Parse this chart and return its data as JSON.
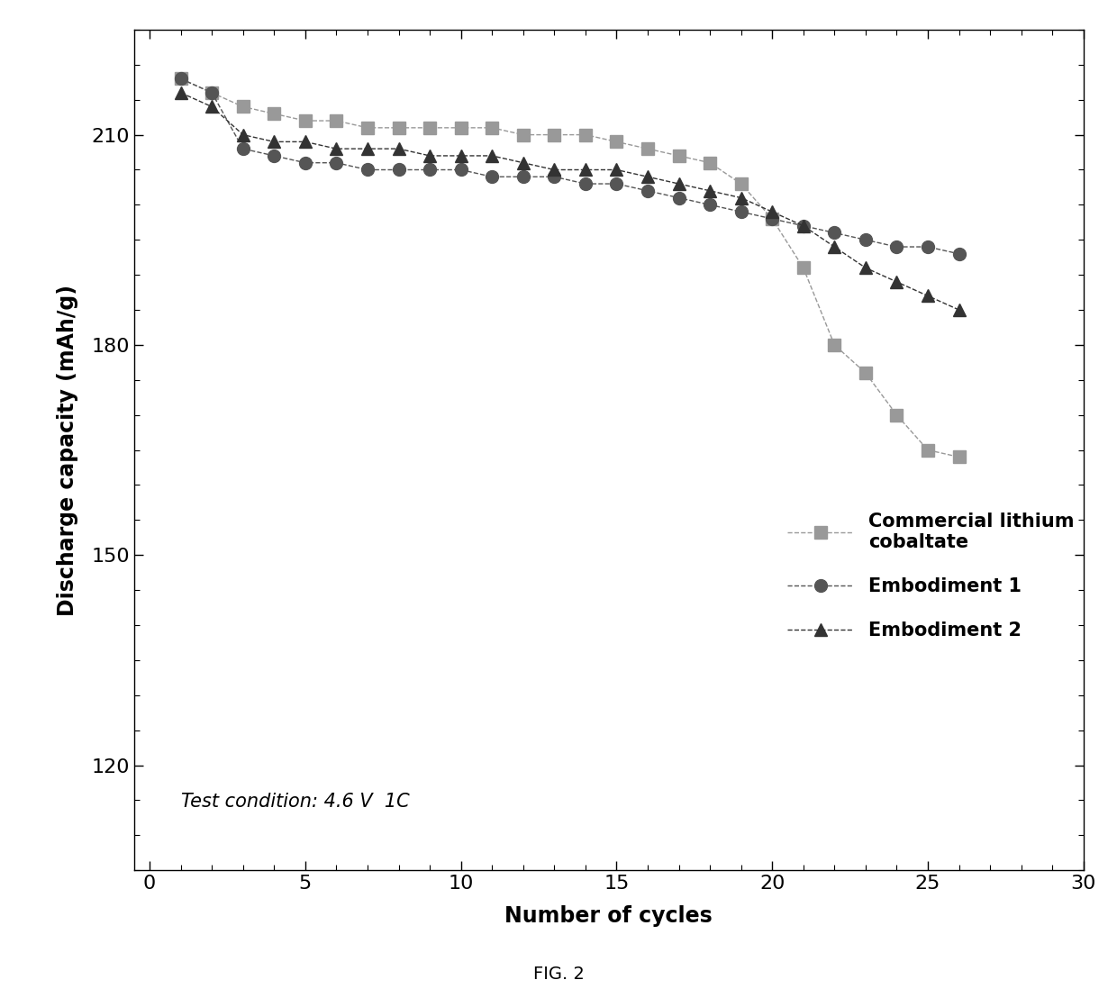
{
  "title": "",
  "xlabel": "Number of cycles",
  "ylabel": "Discharge capacity (mAh/g)",
  "xlim": [
    -0.5,
    30
  ],
  "ylim": [
    105,
    225
  ],
  "yticks": [
    120,
    150,
    180,
    210
  ],
  "xticks": [
    0,
    5,
    10,
    15,
    20,
    25,
    30
  ],
  "annotation": "Test condition: 4.6 V  1C",
  "fig_label": "FIG. 2",
  "series": [
    {
      "label": "Commercial lithium\ncobaltate",
      "x": [
        1,
        2,
        3,
        4,
        5,
        6,
        7,
        8,
        9,
        10,
        11,
        12,
        13,
        14,
        15,
        16,
        17,
        18,
        19,
        20,
        21,
        22,
        23,
        24,
        25,
        26
      ],
      "y": [
        218,
        216,
        214,
        213,
        212,
        212,
        211,
        211,
        211,
        211,
        211,
        210,
        210,
        210,
        209,
        208,
        207,
        206,
        203,
        198,
        191,
        180,
        176,
        170,
        165,
        164
      ],
      "color": "#999999",
      "marker": "s",
      "linestyle": "--",
      "markersize": 10
    },
    {
      "label": "Embodiment 1",
      "x": [
        1,
        2,
        3,
        4,
        5,
        6,
        7,
        8,
        9,
        10,
        11,
        12,
        13,
        14,
        15,
        16,
        17,
        18,
        19,
        20,
        21,
        22,
        23,
        24,
        25,
        26
      ],
      "y": [
        218,
        216,
        208,
        207,
        206,
        206,
        205,
        205,
        205,
        205,
        204,
        204,
        204,
        203,
        203,
        202,
        201,
        200,
        199,
        198,
        197,
        196,
        195,
        194,
        194,
        193
      ],
      "color": "#555555",
      "marker": "o",
      "linestyle": "--",
      "markersize": 10
    },
    {
      "label": "Embodiment 2",
      "x": [
        1,
        2,
        3,
        4,
        5,
        6,
        7,
        8,
        9,
        10,
        11,
        12,
        13,
        14,
        15,
        16,
        17,
        18,
        19,
        20,
        21,
        22,
        23,
        24,
        25,
        26
      ],
      "y": [
        216,
        214,
        210,
        209,
        209,
        208,
        208,
        208,
        207,
        207,
        207,
        206,
        205,
        205,
        205,
        204,
        203,
        202,
        201,
        199,
        197,
        194,
        191,
        189,
        187,
        185
      ],
      "color": "#333333",
      "marker": "^",
      "linestyle": "--",
      "markersize": 10
    }
  ],
  "background_color": "#ffffff",
  "spine_color": "#000000",
  "label_fontsize": 17,
  "tick_fontsize": 16,
  "legend_fontsize": 15,
  "annotation_fontsize": 15
}
